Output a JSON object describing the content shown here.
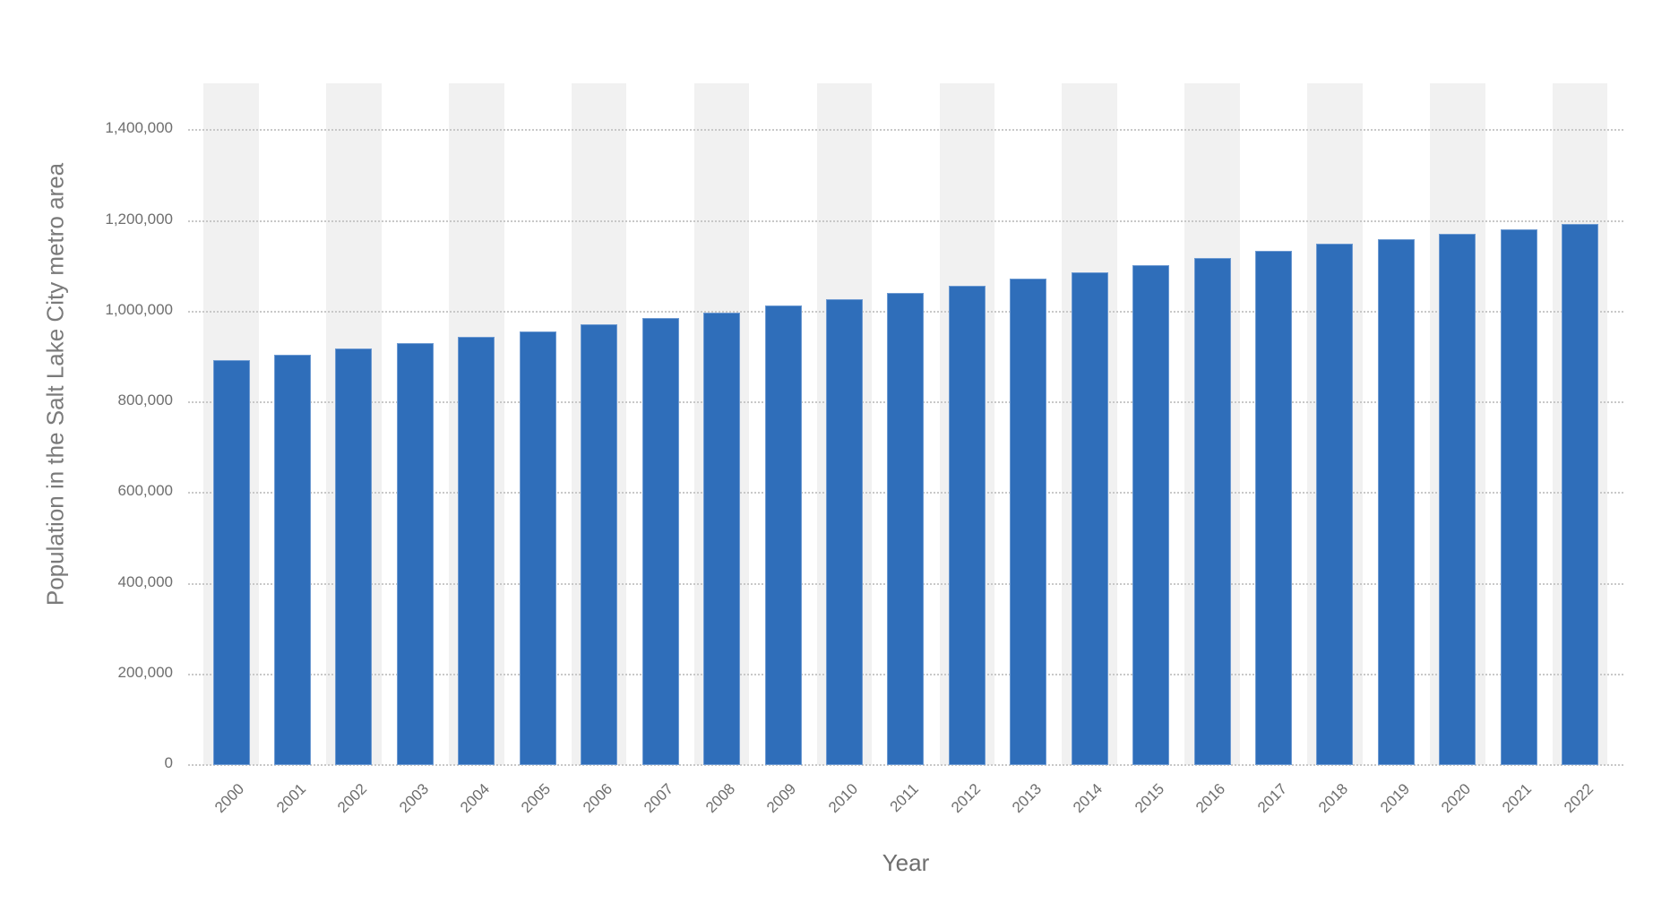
{
  "chart_data": {
    "type": "bar",
    "title": "",
    "xlabel": "Year",
    "ylabel": "Population in the Salt Lake City metro area",
    "categories": [
      "2000",
      "2001",
      "2002",
      "2003",
      "2004",
      "2005",
      "2006",
      "2007",
      "2008",
      "2009",
      "2010",
      "2011",
      "2012",
      "2013",
      "2014",
      "2015",
      "2016",
      "2017",
      "2018",
      "2019",
      "2020",
      "2021",
      "2022"
    ],
    "series": [
      {
        "name": "Population",
        "color": "#2f6eba",
        "values": [
          892700,
          905200,
          917800,
          930900,
          944100,
          956900,
          971200,
          985600,
          998000,
          1013200,
          1027000,
          1041500,
          1056100,
          1071900,
          1086300,
          1101500,
          1117300,
          1133100,
          1148800,
          1160000,
          1170600,
          1181800,
          1193600
        ]
      }
    ],
    "ylim": [
      0,
      1400000
    ],
    "yticks": [
      0,
      200000,
      400000,
      600000,
      800000,
      1000000,
      1200000,
      1400000
    ],
    "ytick_labels": [
      "0",
      "200,000",
      "400,000",
      "600,000",
      "800,000",
      "1,000,000",
      "1,200,000",
      "1,400,000"
    ],
    "grid": true,
    "legend": "none",
    "alternating_bands": true,
    "band_color": "#f1f1f1"
  }
}
